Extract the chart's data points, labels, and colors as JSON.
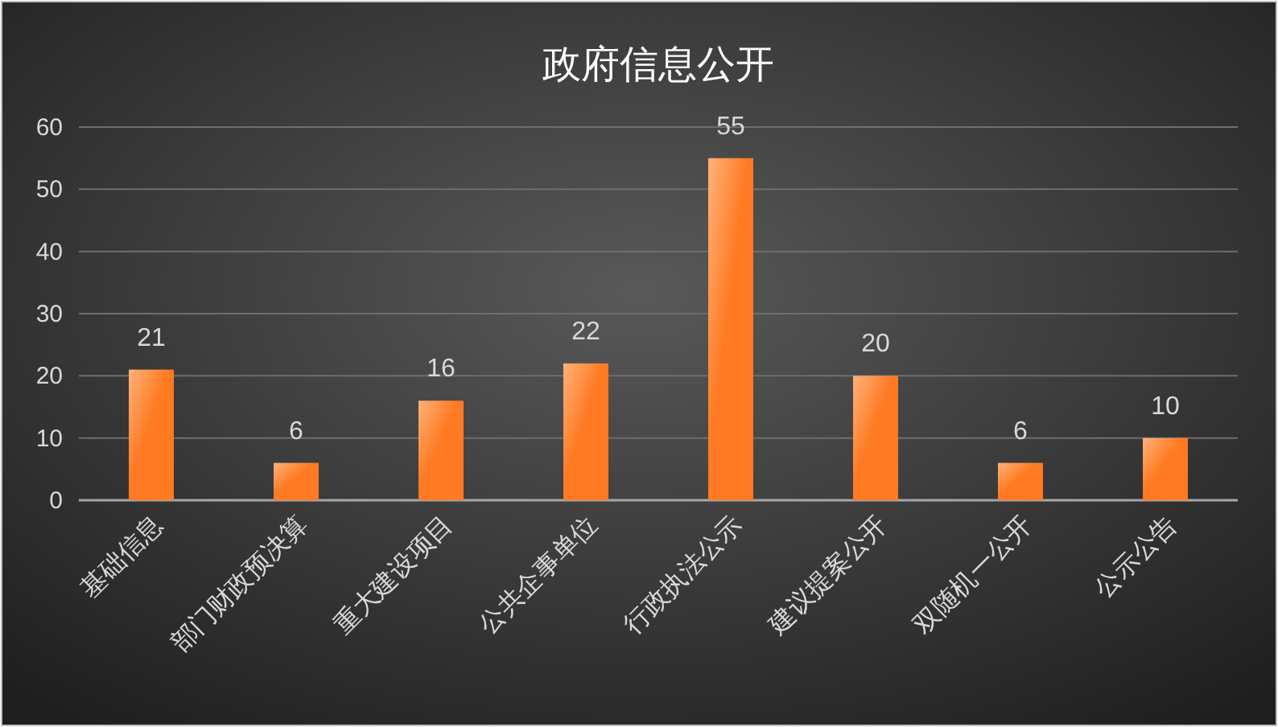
{
  "chart_data": {
    "type": "bar",
    "title": "政府信息公开",
    "categories": [
      "基础信息",
      "部门财政预决算",
      "重大建设项目",
      "公共企事单位",
      "行政执法公示",
      "建议提案公开",
      "双随机一公开",
      "公示公告"
    ],
    "values": [
      21,
      6,
      16,
      22,
      55,
      20,
      6,
      10
    ],
    "color": "#ff7a22",
    "ylim": [
      0,
      60
    ],
    "yticks": [
      0,
      10,
      20,
      30,
      40,
      50,
      60
    ],
    "grid": "y",
    "data_labels": true
  }
}
